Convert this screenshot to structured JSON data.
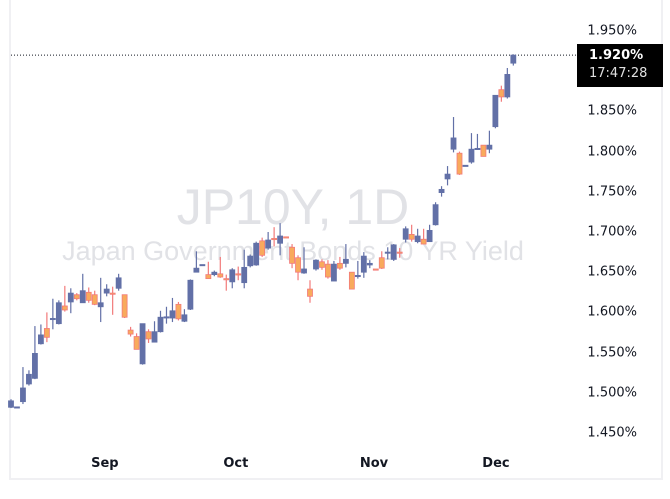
{
  "chart_data": {
    "type": "candlestick",
    "title": "JP10Y, 1D",
    "subtitle": "Japan Government Bonds 10 YR Yield",
    "interval": "1D",
    "ylim": [
      1.43,
      1.97
    ],
    "yticks": [
      "1.950%",
      "1.900%",
      "1.850%",
      "1.800%",
      "1.750%",
      "1.700%",
      "1.650%",
      "1.600%",
      "1.550%",
      "1.500%",
      "1.450%"
    ],
    "ytick_values": [
      1.95,
      1.9,
      1.85,
      1.8,
      1.75,
      1.7,
      1.65,
      1.6,
      1.55,
      1.5,
      1.45
    ],
    "month_labels": [
      {
        "label": "Sep",
        "index": 15.7
      },
      {
        "label": "Oct",
        "index": 37.6
      },
      {
        "label": "Nov",
        "index": 60.7
      },
      {
        "label": "Dec",
        "index": 81.1
      }
    ],
    "up_color": "#6270a7",
    "down_fill": "#f8aa5c",
    "down_border": "#f27a7a",
    "last_price": "1.920%",
    "last_value": 1.92,
    "countdown": "17:47:28",
    "ohlc_fields": [
      "open",
      "high",
      "low",
      "close"
    ],
    "ohlc": [
      [
        1.482,
        1.492,
        1.481,
        1.49
      ],
      [
        1.482,
        1.482,
        1.482,
        1.4825
      ],
      [
        1.489,
        1.532,
        1.486,
        1.506
      ],
      [
        1.511,
        1.528,
        1.509,
        1.523
      ],
      [
        1.518,
        1.583,
        1.517,
        1.549
      ],
      [
        1.561,
        1.585,
        1.56,
        1.572
      ],
      [
        1.58,
        1.6,
        1.563,
        1.569
      ],
      [
        1.592,
        1.617,
        1.579,
        1.5925
      ],
      [
        1.586,
        1.615,
        1.585,
        1.612
      ],
      [
        1.608,
        1.633,
        1.601,
        1.603
      ],
      [
        1.613,
        1.63,
        1.599,
        1.624
      ],
      [
        1.622,
        1.624,
        1.615,
        1.617
      ],
      [
        1.612,
        1.648,
        1.612,
        1.627
      ],
      [
        1.625,
        1.631,
        1.612,
        1.615
      ],
      [
        1.622,
        1.627,
        1.609,
        1.61
      ],
      [
        1.607,
        1.643,
        1.588,
        1.612
      ],
      [
        1.624,
        1.635,
        1.62,
        1.629
      ],
      [
        1.624,
        1.632,
        1.597,
        1.623
      ],
      [
        1.63,
        1.648,
        1.627,
        1.643
      ],
      [
        1.622,
        1.622,
        1.593,
        1.594
      ],
      [
        1.578,
        1.582,
        1.57,
        1.573
      ],
      [
        1.57,
        1.574,
        1.554,
        1.554
      ],
      [
        1.536,
        1.586,
        1.535,
        1.586
      ],
      [
        1.576,
        1.579,
        1.562,
        1.567
      ],
      [
        1.563,
        1.589,
        1.563,
        1.576
      ],
      [
        1.576,
        1.602,
        1.575,
        1.594
      ],
      [
        1.594,
        1.607,
        1.586,
        1.5945
      ],
      [
        1.593,
        1.618,
        1.588,
        1.602
      ],
      [
        1.61,
        1.613,
        1.59,
        1.592
      ],
      [
        1.589,
        1.604,
        1.588,
        1.597
      ],
      [
        1.604,
        1.641,
        1.603,
        1.64
      ],
      [
        1.65,
        1.676,
        1.65,
        1.655
      ],
      [
        1.659,
        1.659,
        1.659,
        1.6595
      ],
      [
        1.647,
        1.663,
        1.642,
        1.642
      ],
      [
        1.647,
        1.652,
        1.645,
        1.65
      ],
      [
        1.648,
        1.669,
        1.643,
        1.644
      ],
      [
        1.642,
        1.647,
        1.627,
        1.641
      ],
      [
        1.638,
        1.655,
        1.63,
        1.653
      ],
      [
        1.648,
        1.657,
        1.64,
        1.647
      ],
      [
        1.637,
        1.678,
        1.63,
        1.656
      ],
      [
        1.658,
        1.672,
        1.656,
        1.67
      ],
      [
        1.659,
        1.688,
        1.658,
        1.686
      ],
      [
        1.689,
        1.693,
        1.669,
        1.671
      ],
      [
        1.68,
        1.7,
        1.678,
        1.69
      ],
      [
        1.692,
        1.706,
        1.682,
        1.691
      ],
      [
        1.686,
        1.711,
        1.671,
        1.695
      ],
      [
        1.694,
        1.694,
        1.694,
        1.693
      ],
      [
        1.681,
        1.685,
        1.655,
        1.661
      ],
      [
        1.668,
        1.671,
        1.64,
        1.65
      ],
      [
        1.649,
        1.681,
        1.648,
        1.654
      ],
      [
        1.629,
        1.64,
        1.612,
        1.62
      ],
      [
        1.654,
        1.666,
        1.652,
        1.665
      ],
      [
        1.663,
        1.666,
        1.653,
        1.656
      ],
      [
        1.66,
        1.665,
        1.642,
        1.644
      ],
      [
        1.639,
        1.664,
        1.639,
        1.66
      ],
      [
        1.661,
        1.669,
        1.653,
        1.655
      ],
      [
        1.661,
        1.685,
        1.656,
        1.666
      ],
      [
        1.65,
        1.65,
        1.629,
        1.629
      ],
      [
        1.645,
        1.664,
        1.642,
        1.646
      ],
      [
        1.65,
        1.675,
        1.643,
        1.67
      ],
      [
        1.659,
        1.665,
        1.655,
        1.661
      ],
      [
        1.654,
        1.654,
        1.654,
        1.653
      ],
      [
        1.668,
        1.676,
        1.654,
        1.655
      ],
      [
        1.674,
        1.681,
        1.666,
        1.675
      ],
      [
        1.666,
        1.685,
        1.664,
        1.684
      ],
      [
        1.675,
        1.68,
        1.668,
        1.674
      ],
      [
        1.691,
        1.707,
        1.687,
        1.704
      ],
      [
        1.697,
        1.709,
        1.688,
        1.691
      ],
      [
        1.688,
        1.704,
        1.686,
        1.695
      ],
      [
        1.691,
        1.704,
        1.685,
        1.685
      ],
      [
        1.688,
        1.709,
        1.688,
        1.702
      ],
      [
        1.709,
        1.737,
        1.708,
        1.734
      ],
      [
        1.749,
        1.757,
        1.744,
        1.753
      ],
      [
        1.766,
        1.782,
        1.758,
        1.772
      ],
      [
        1.803,
        1.843,
        1.799,
        1.817
      ],
      [
        1.798,
        1.8,
        1.771,
        1.772
      ],
      [
        1.782,
        1.782,
        1.782,
        1.783
      ],
      [
        1.787,
        1.823,
        1.785,
        1.803
      ],
      [
        1.803,
        1.822,
        1.803,
        1.804
      ],
      [
        1.808,
        1.808,
        1.794,
        1.794
      ],
      [
        1.803,
        1.826,
        1.798,
        1.808
      ],
      [
        1.831,
        1.87,
        1.829,
        1.87
      ],
      [
        1.877,
        1.882,
        1.862,
        1.868
      ],
      [
        1.868,
        1.904,
        1.866,
        1.896
      ],
      [
        1.91,
        1.921,
        1.907,
        1.92
      ]
    ]
  }
}
